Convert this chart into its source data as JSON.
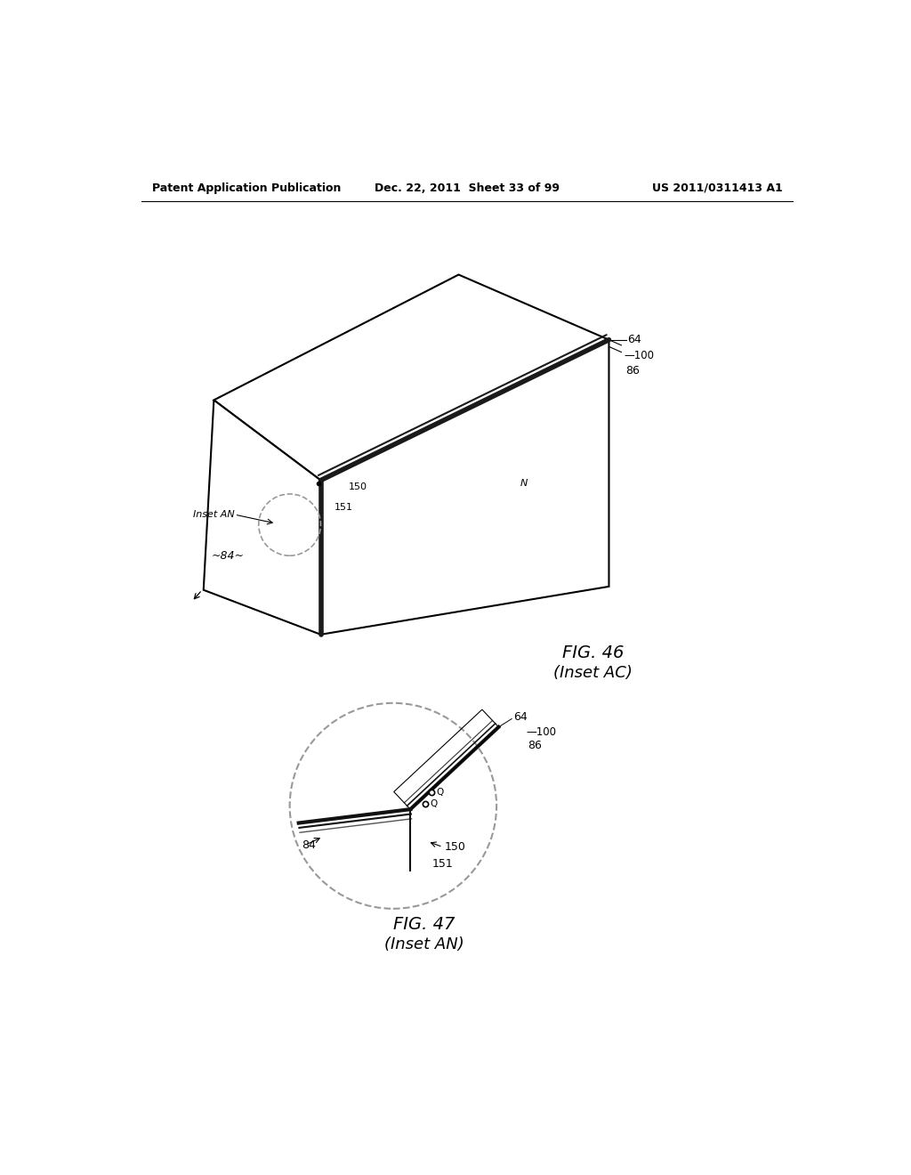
{
  "bg_color": "#ffffff",
  "header_left": "Patent Application Publication",
  "header_center": "Dec. 22, 2011  Sheet 33 of 99",
  "header_right": "US 2011/0311413 A1",
  "line_color": "#000000",
  "hatch_color": "#555555"
}
